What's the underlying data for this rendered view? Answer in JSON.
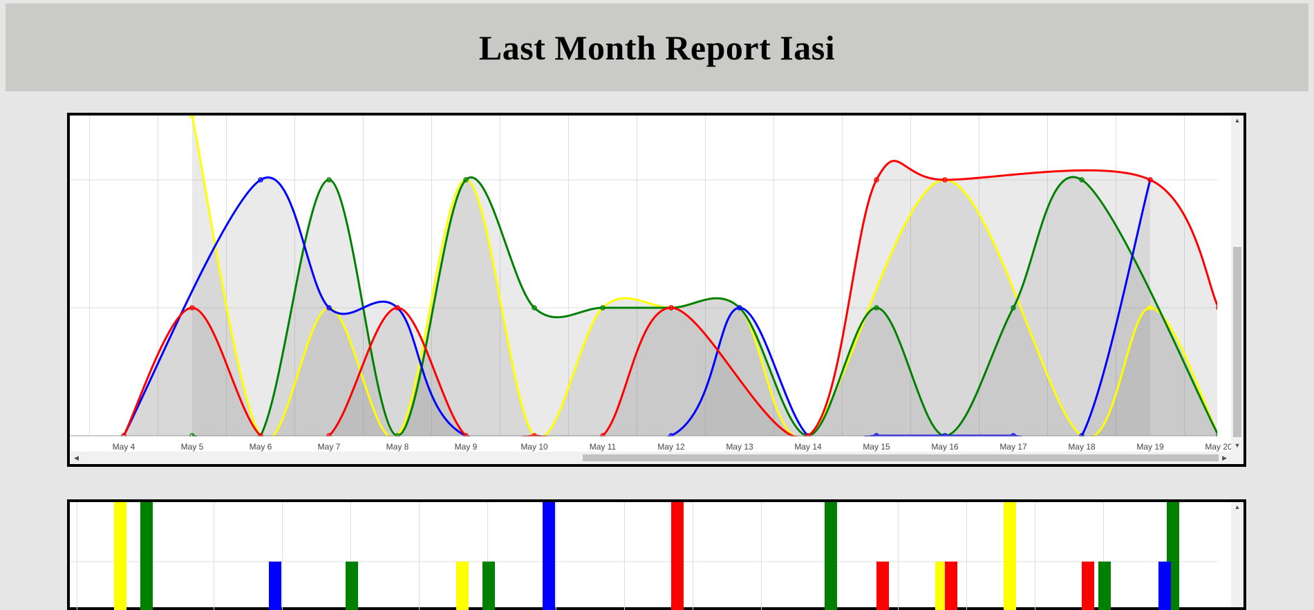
{
  "page": {
    "title": "Last Month Report Iasi"
  },
  "colors": {
    "c0": "#ffff00",
    "c1": "#008000",
    "c2": "#0000ff",
    "c3": "#ff0000",
    "grid": "#dddddd",
    "band": "#c4c4c4"
  },
  "chart_data": [
    {
      "type": "line",
      "title": "",
      "x_tick_labels": [
        "May 4",
        "May 5",
        "May 6",
        "May 7",
        "May 8",
        "May 9",
        "May 10",
        "May 11",
        "May 12",
        "May 13",
        "May 14",
        "May 15",
        "May 16",
        "May 17",
        "May 18",
        "May 19",
        "May 20"
      ],
      "ylim": [
        0,
        2.5
      ],
      "grid": true,
      "series": [
        {
          "color": "yellow",
          "values": [
            null,
            2.5,
            0,
            1,
            0,
            2,
            0,
            1,
            1,
            1,
            0,
            null,
            2,
            null,
            0,
            1,
            0
          ]
        },
        {
          "color": "green",
          "values": [
            null,
            0,
            0,
            2,
            0,
            2,
            1,
            1,
            1,
            1,
            0,
            1,
            0,
            1,
            2,
            null,
            0
          ]
        },
        {
          "color": "blue",
          "values": [
            0,
            null,
            2,
            1,
            1,
            0,
            null,
            null,
            0,
            1,
            0,
            0,
            0,
            0,
            0,
            2,
            null
          ]
        },
        {
          "color": "red",
          "values": [
            0,
            1,
            0,
            0,
            1,
            0,
            0,
            0,
            1,
            null,
            0,
            2,
            2,
            null,
            null,
            2,
            1
          ]
        }
      ]
    },
    {
      "type": "bar",
      "title": "",
      "grid": true,
      "series": [
        {
          "color": "yellow",
          "bars": [
            {
              "x": "May 4",
              "level": 2
            },
            {
              "x": "May 9",
              "level": 1
            },
            {
              "x": "May 16",
              "level": 1
            },
            {
              "x": "May 17",
              "level": 2
            }
          ]
        },
        {
          "color": "green",
          "bars": [
            {
              "x": "May 4",
              "level": 2
            },
            {
              "x": "May 7",
              "level": 1
            },
            {
              "x": "May 9",
              "level": 1
            },
            {
              "x": "May 14",
              "level": 2
            },
            {
              "x": "May 18",
              "level": 1
            },
            {
              "x": "May 19",
              "level": 2
            }
          ]
        },
        {
          "color": "blue",
          "bars": [
            {
              "x": "May 6",
              "level": 1
            },
            {
              "x": "May 10",
              "level": 2
            },
            {
              "x": "May 19",
              "level": 1
            }
          ]
        },
        {
          "color": "red",
          "bars": [
            {
              "x": "May 12",
              "level": 2
            },
            {
              "x": "May 15",
              "level": 1
            },
            {
              "x": "May 16",
              "level": 1
            },
            {
              "x": "May 18",
              "level": 1
            }
          ]
        }
      ]
    }
  ],
  "scrollbars": {
    "up_arrow": "▲",
    "down_arrow": "▼",
    "left_arrow": "◀",
    "right_arrow": "▶"
  }
}
